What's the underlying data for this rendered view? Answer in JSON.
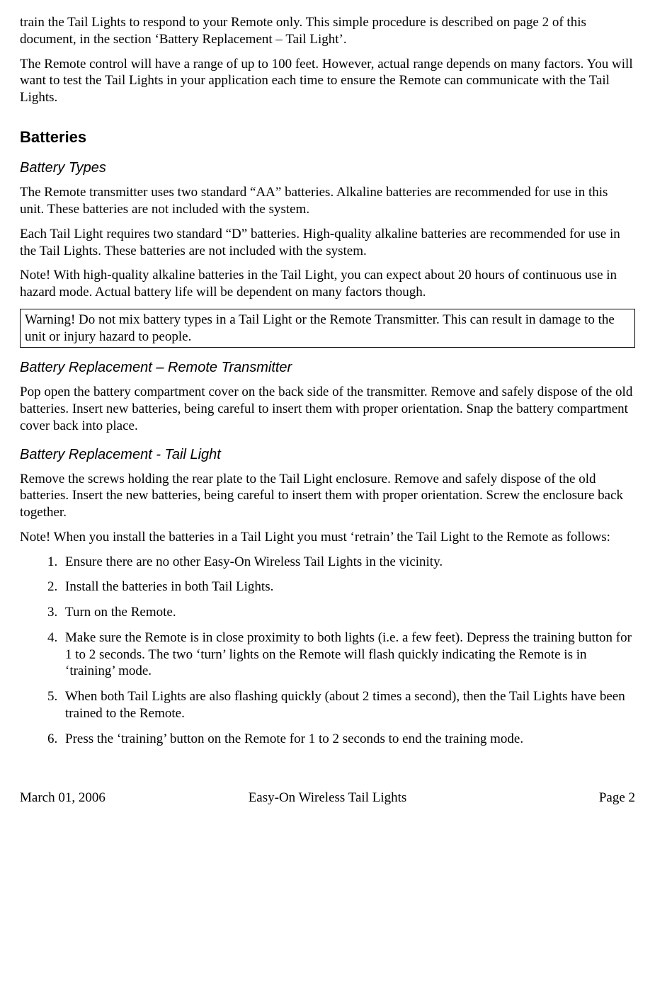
{
  "intro": {
    "p1": "train the Tail Lights to respond to your Remote only. This simple procedure is described on page 2 of this document, in the section ‘Battery Replacement – Tail Light’.",
    "p2": "The Remote control will have a range of up to 100 feet. However, actual range depends on many factors. You will want to test the Tail Lights in your application each time to ensure the Remote can communicate with the Tail Lights."
  },
  "batteries": {
    "heading": "Batteries",
    "types": {
      "heading": "Battery Types",
      "p1": "The Remote transmitter uses two standard “AA” batteries. Alkaline batteries are recommended for use in this unit. These batteries are not included with the system.",
      "p2": "Each Tail Light requires two standard “D” batteries. High-quality alkaline batteries are recommended for use in the Tail Lights. These batteries are not included with the system.",
      "p3": "Note! With high-quality alkaline batteries in the Tail Light, you can expect about 20 hours of continuous use in hazard mode. Actual battery life will be dependent on many factors though.",
      "warning": "Warning! Do not mix battery types in a Tail Light or the Remote Transmitter. This can result in damage to the unit or injury hazard to people."
    },
    "remote": {
      "heading": "Battery Replacement – Remote Transmitter",
      "p1": "Pop open the battery compartment cover on the back side of the transmitter. Remove and safely dispose of the old batteries. Insert new batteries, being careful to insert them with proper orientation. Snap the battery compartment cover back into place."
    },
    "tail": {
      "heading": "Battery Replacement - Tail Light",
      "p1": "Remove the screws holding the rear plate to the Tail Light enclosure. Remove and safely dispose of the old batteries. Insert the new batteries, being careful to insert them with proper orientation. Screw the enclosure back together.",
      "p2": "Note! When you install the batteries in a Tail Light you must ‘retrain’ the Tail Light to the Remote as follows:",
      "steps": [
        "Ensure there are no other Easy-On Wireless Tail Lights in the vicinity.",
        "Install the batteries in both Tail Lights.",
        "Turn on the Remote.",
        "Make sure the Remote is in close proximity to both lights (i.e. a few feet). Depress the training button for 1 to 2 seconds. The two ‘turn’ lights on the Remote will flash quickly indicating the Remote is in ‘training’ mode.",
        "When both Tail Lights are also flashing quickly (about 2 times a second), then the Tail Lights have been trained to the Remote.",
        "Press the ‘training’ button on the Remote for 1 to 2 seconds to end the training mode."
      ]
    }
  },
  "footer": {
    "date": "March 01, 2006",
    "title": "Easy-On Wireless Tail Lights",
    "page": "Page 2"
  }
}
